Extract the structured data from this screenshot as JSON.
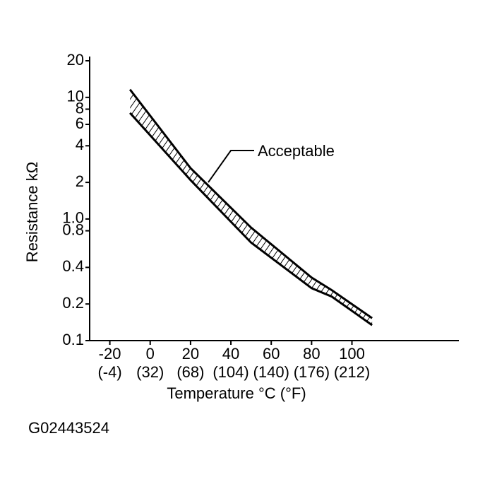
{
  "chart_data": {
    "type": "line",
    "ylabel": "Resistance kΩ",
    "xlabel": "Temperature °C (°F)",
    "figure_id": "G02443524",
    "annotation": "Acceptable",
    "log_y": true,
    "color": "#000000",
    "xlim": [
      -30,
      153
    ],
    "ylim": [
      0.1,
      20
    ],
    "xticks": [
      -20,
      0,
      20,
      40,
      60,
      80,
      100
    ],
    "xtick_secondary_labels": [
      "(-4)",
      "(32)",
      "(68)",
      "(104)",
      "(140)",
      "(176)",
      "(212)"
    ],
    "yticks": [
      20,
      10,
      8,
      6,
      4,
      2,
      {
        "value": 1,
        "label": "1.0"
      },
      0.8,
      0.4,
      0.2,
      0.1
    ],
    "x": [
      -10,
      20,
      50,
      80,
      90,
      110
    ],
    "series": [
      {
        "values": [
          11.6,
          2.62,
          0.85,
          0.33,
          0.26,
          0.153
        ]
      },
      {
        "values": [
          7.45,
          2.09,
          0.64,
          0.27,
          0.23,
          0.134
        ]
      }
    ]
  }
}
